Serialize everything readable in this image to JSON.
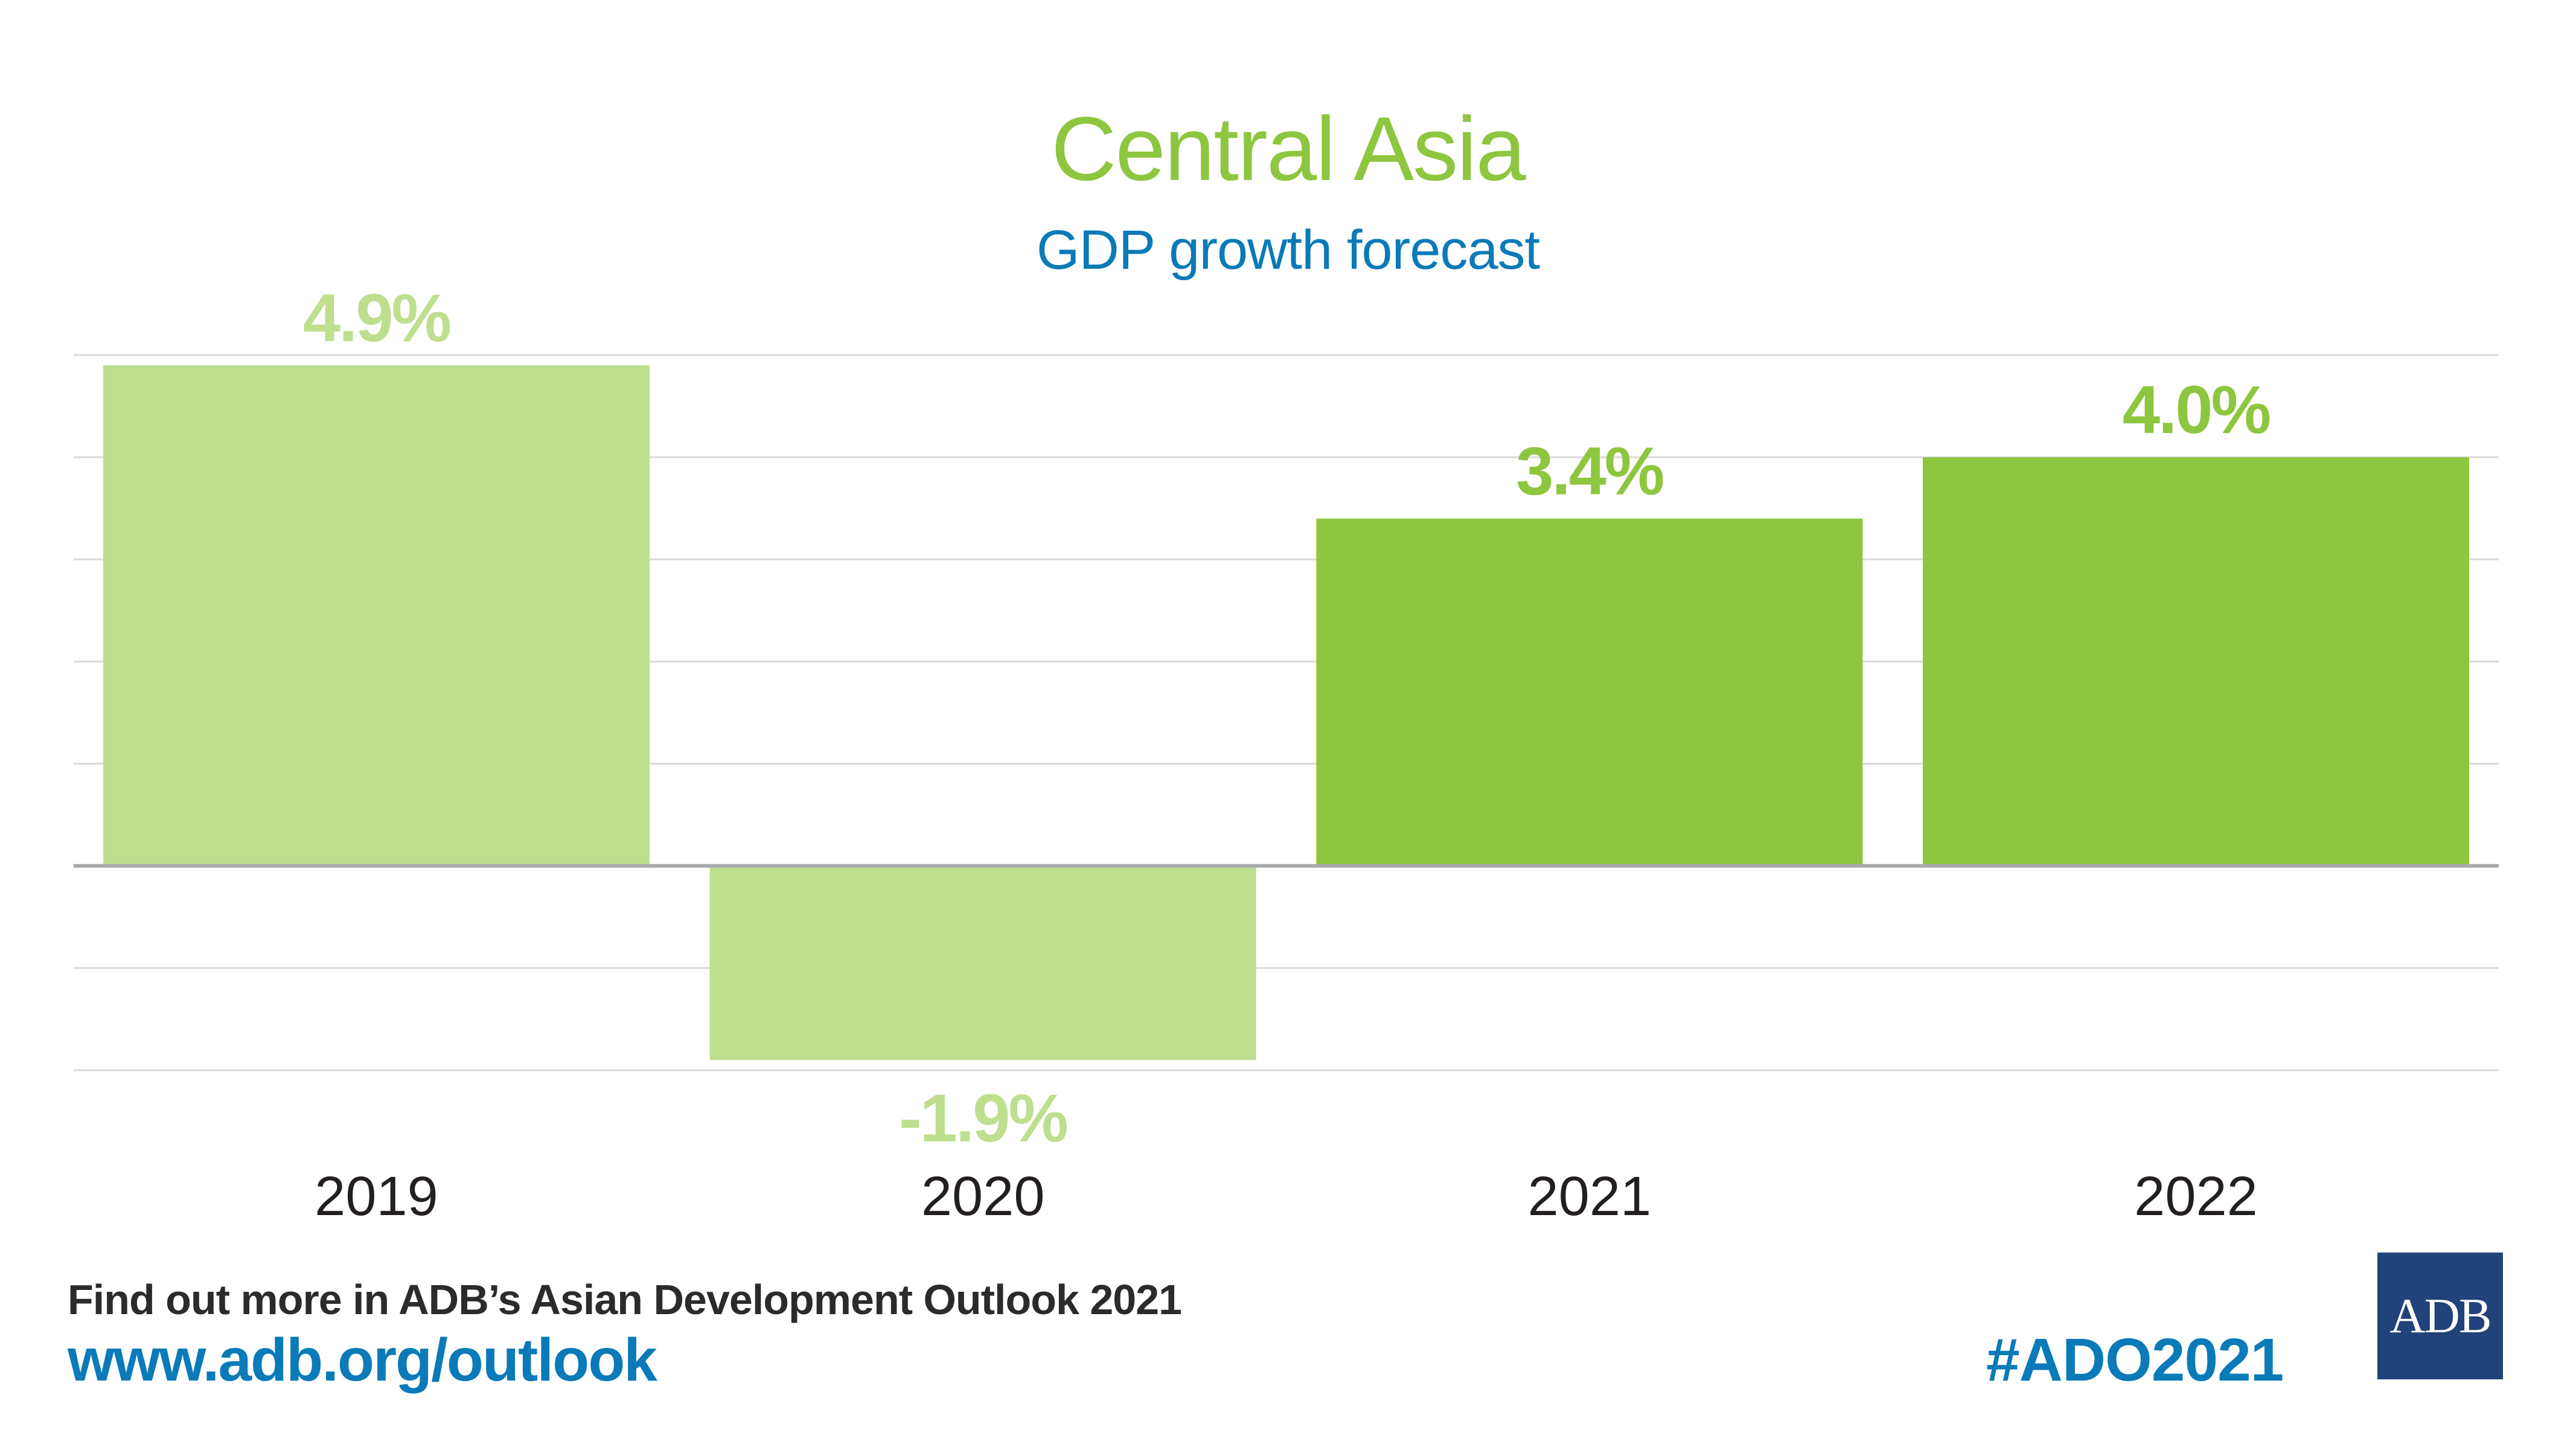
{
  "header": {
    "title": "Central Asia",
    "subtitle": "GDP growth forecast"
  },
  "colors": {
    "title": "#8dc63f",
    "subtitle": "#0a7ab8",
    "actual_bar": "#bedf8e",
    "forecast_bar": "#8dc63f",
    "gridline": "#d9d9d9",
    "zero_line": "#a7a9ac",
    "year_label": "#231f20",
    "logo_bg": "#21427a"
  },
  "chart_data": {
    "type": "bar",
    "title": "Central Asia",
    "subtitle": "GDP growth forecast",
    "xlabel": "",
    "ylabel": "",
    "categories": [
      "2019",
      "2020",
      "2021",
      "2022"
    ],
    "values": [
      4.9,
      -1.9,
      3.4,
      4.0
    ],
    "data_labels": [
      "4.9%",
      "-1.9%",
      "3.4%",
      "4.0%"
    ],
    "bar_kind": [
      "actual",
      "actual",
      "forecast",
      "forecast"
    ],
    "ylim": [
      -2,
      5
    ],
    "gridline_step": 1,
    "grid": true,
    "y_tick_labels_shown": false,
    "legend": "none"
  },
  "footer": {
    "line": "Find out more in ADB’s Asian Development Outlook 2021",
    "url": "www.adb.org/outlook",
    "hashtag": "#ADO2021",
    "logo_text": "ADB"
  }
}
